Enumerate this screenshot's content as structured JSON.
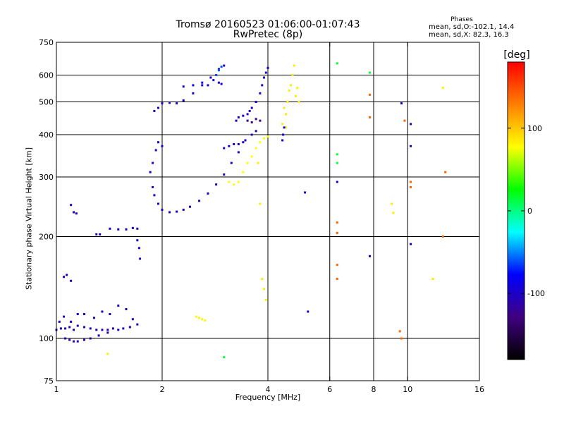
{
  "chart_data": {
    "type": "scatter",
    "title": "Tromsø 20160523 01:06:00-01:07:43",
    "subtitle": "RwPretec (8p)",
    "info": {
      "heading": "Phases",
      "line_o": "mean, sd,O:-102.1, 14.4",
      "line_x": "mean, sd,X:  82.3, 16.3"
    },
    "xlabel": "Frequency [MHz]",
    "ylabel": "Stationary phase Virtual Height [km]",
    "x_scale": "log",
    "y_scale": "log",
    "xlim": [
      1,
      16
    ],
    "ylim": [
      75,
      750
    ],
    "x_ticks": [
      1,
      2,
      4,
      6,
      8,
      10,
      16
    ],
    "x_tick_labels": [
      "1",
      "2",
      "4",
      "6",
      "8",
      "10",
      "16"
    ],
    "x_grid": [
      2,
      4,
      6,
      8,
      10
    ],
    "y_ticks": [
      75,
      100,
      200,
      300,
      400,
      500,
      600,
      750
    ],
    "y_tick_labels": [
      "75",
      "100",
      "200",
      "300",
      "400",
      "500",
      "600",
      "750"
    ],
    "y_grid": [
      100,
      200,
      300,
      400,
      500,
      600
    ],
    "colorbar": {
      "label": "[deg]",
      "range": [
        -180,
        180
      ],
      "tick_values": [
        100,
        0,
        -100
      ],
      "tick_labels": [
        "100",
        "0",
        "-100"
      ],
      "colors": [
        "#000000",
        "#400080",
        "#0000ff",
        "#00ffff",
        "#00ff00",
        "#ffff00",
        "#ff8000",
        "#ff0000"
      ]
    },
    "series": [
      {
        "phase": -105,
        "points": [
          [
            1.0,
            106
          ],
          [
            1.03,
            107
          ],
          [
            1.06,
            107
          ],
          [
            1.09,
            108
          ],
          [
            1.12,
            106
          ],
          [
            1.15,
            109
          ],
          [
            1.2,
            108
          ],
          [
            1.25,
            107
          ],
          [
            1.3,
            106
          ],
          [
            1.35,
            106
          ],
          [
            1.4,
            106
          ],
          [
            1.45,
            107
          ],
          [
            1.5,
            106
          ],
          [
            1.55,
            107
          ],
          [
            1.62,
            108
          ],
          [
            1.7,
            110
          ]
        ]
      },
      {
        "phase": -110,
        "points": [
          [
            1.06,
            100
          ],
          [
            1.09,
            99
          ],
          [
            1.12,
            98
          ],
          [
            1.15,
            98
          ],
          [
            1.2,
            99
          ],
          [
            1.25,
            100
          ],
          [
            1.32,
            102
          ],
          [
            1.4,
            104
          ]
        ]
      },
      {
        "phase": -100,
        "points": [
          [
            1.02,
            112
          ],
          [
            1.05,
            116
          ],
          [
            1.1,
            112
          ],
          [
            1.15,
            118
          ],
          [
            1.2,
            118
          ],
          [
            1.28,
            115
          ],
          [
            1.35,
            120
          ],
          [
            1.42,
            118
          ],
          [
            1.5,
            125
          ],
          [
            1.58,
            122
          ],
          [
            1.65,
            114
          ]
        ]
      },
      {
        "phase": -105,
        "points": [
          [
            1.05,
            152
          ],
          [
            1.07,
            154
          ],
          [
            1.1,
            148
          ]
        ]
      },
      {
        "phase": -100,
        "points": [
          [
            1.1,
            248
          ],
          [
            1.12,
            236
          ],
          [
            1.14,
            234
          ]
        ]
      },
      {
        "phase": -100,
        "points": [
          [
            1.3,
            203
          ],
          [
            1.33,
            203
          ],
          [
            1.42,
            211
          ],
          [
            1.5,
            210
          ],
          [
            1.58,
            210
          ],
          [
            1.65,
            212
          ],
          [
            1.7,
            211
          ]
        ]
      },
      {
        "phase": -95,
        "points": [
          [
            1.7,
            195
          ],
          [
            1.72,
            185
          ],
          [
            1.73,
            172
          ]
        ]
      },
      {
        "phase": -100,
        "points": [
          [
            1.88,
            280
          ],
          [
            1.9,
            265
          ],
          [
            1.95,
            250
          ],
          [
            2.0,
            240
          ],
          [
            2.1,
            236
          ],
          [
            2.2,
            237
          ],
          [
            2.3,
            240
          ],
          [
            2.4,
            245
          ],
          [
            2.55,
            255
          ],
          [
            2.7,
            268
          ],
          [
            2.85,
            285
          ],
          [
            3.0,
            305
          ],
          [
            3.15,
            330
          ],
          [
            3.3,
            355
          ],
          [
            3.45,
            385
          ],
          [
            3.6,
            400
          ],
          [
            3.7,
            410
          ]
        ]
      },
      {
        "phase": -95,
        "points": [
          [
            1.85,
            310
          ],
          [
            1.88,
            330
          ],
          [
            1.92,
            360
          ],
          [
            1.95,
            380
          ],
          [
            2.0,
            370
          ]
        ]
      },
      {
        "phase": -100,
        "points": [
          [
            1.9,
            470
          ],
          [
            1.95,
            480
          ],
          [
            2.0,
            495
          ],
          [
            2.1,
            497
          ],
          [
            2.2,
            495
          ],
          [
            2.3,
            505
          ],
          [
            2.45,
            530
          ],
          [
            2.6,
            560
          ],
          [
            2.75,
            590
          ],
          [
            2.9,
            625
          ],
          [
            3.0,
            640
          ]
        ]
      },
      {
        "phase": -90,
        "points": [
          [
            2.3,
            555
          ],
          [
            2.45,
            560
          ],
          [
            2.6,
            570
          ],
          [
            2.7,
            560
          ],
          [
            2.8,
            580
          ],
          [
            2.85,
            600
          ],
          [
            2.9,
            570
          ],
          [
            2.95,
            565
          ]
        ]
      },
      {
        "phase": -60,
        "points": [
          [
            2.85,
            600
          ],
          [
            2.9,
            620
          ],
          [
            2.95,
            635
          ]
        ]
      },
      {
        "phase": -100,
        "points": [
          [
            3.5,
            460
          ],
          [
            3.55,
            470
          ],
          [
            3.6,
            480
          ],
          [
            3.7,
            500
          ],
          [
            3.8,
            530
          ],
          [
            3.85,
            560
          ],
          [
            3.9,
            590
          ],
          [
            3.95,
            610
          ],
          [
            4.0,
            630
          ]
        ]
      },
      {
        "phase": -100,
        "points": [
          [
            3.0,
            365
          ],
          [
            3.1,
            370
          ],
          [
            3.2,
            375
          ],
          [
            3.3,
            375
          ],
          [
            3.4,
            380
          ]
        ]
      },
      {
        "phase": -125,
        "points": [
          [
            3.5,
            440
          ],
          [
            3.6,
            435
          ],
          [
            3.7,
            445
          ],
          [
            3.8,
            440
          ]
        ]
      },
      {
        "phase": -100,
        "points": [
          [
            3.3,
            450
          ],
          [
            3.4,
            455
          ],
          [
            3.25,
            440
          ]
        ]
      },
      {
        "phase": 78,
        "points": [
          [
            3.1,
            290
          ],
          [
            3.2,
            285
          ],
          [
            3.3,
            290
          ],
          [
            3.4,
            310
          ],
          [
            3.5,
            330
          ],
          [
            3.6,
            345
          ],
          [
            3.7,
            365
          ],
          [
            3.8,
            380
          ],
          [
            3.9,
            390
          ],
          [
            4.0,
            395
          ]
        ]
      },
      {
        "phase": 85,
        "points": [
          [
            4.4,
            430
          ],
          [
            4.5,
            460
          ],
          [
            4.55,
            500
          ],
          [
            4.6,
            540
          ],
          [
            4.65,
            560
          ],
          [
            4.7,
            600
          ],
          [
            4.75,
            640
          ],
          [
            4.8,
            520
          ],
          [
            4.85,
            550
          ],
          [
            4.5,
            420
          ],
          [
            4.45,
            480
          ],
          [
            4.9,
            500
          ]
        ]
      },
      {
        "phase": -95,
        "points": [
          [
            4.4,
            385
          ],
          [
            4.42,
            400
          ],
          [
            4.45,
            420
          ]
        ]
      },
      {
        "phase": 80,
        "points": [
          [
            2.5,
            116
          ],
          [
            2.55,
            115
          ],
          [
            2.6,
            114
          ],
          [
            2.65,
            113
          ]
        ]
      },
      {
        "phase": 85,
        "points": [
          [
            3.75,
            330
          ],
          [
            3.8,
            250
          ],
          [
            3.85,
            150
          ],
          [
            3.9,
            140
          ],
          [
            3.95,
            130
          ]
        ]
      },
      {
        "phase": 140,
        "points": [
          [
            6.3,
            220
          ],
          [
            6.3,
            205
          ],
          [
            6.3,
            165
          ],
          [
            6.3,
            150
          ],
          [
            7.8,
            525
          ],
          [
            7.8,
            450
          ],
          [
            7.8,
            175
          ],
          [
            9.5,
            105
          ],
          [
            9.6,
            100
          ],
          [
            9.8,
            440
          ],
          [
            10.2,
            290
          ],
          [
            10.2,
            280
          ],
          [
            12.8,
            310
          ],
          [
            12.6,
            200
          ]
        ]
      },
      {
        "phase": -100,
        "points": [
          [
            6.3,
            290
          ],
          [
            7.8,
            175
          ],
          [
            9.6,
            495
          ],
          [
            10.2,
            430
          ],
          [
            10.2,
            370
          ],
          [
            10.2,
            190
          ],
          [
            5.2,
            120
          ],
          [
            5.1,
            270
          ]
        ]
      },
      {
        "phase": 15,
        "points": [
          [
            6.3,
            330
          ],
          [
            6.3,
            350
          ],
          [
            6.3,
            650
          ],
          [
            7.8,
            610
          ],
          [
            3.0,
            88
          ]
        ]
      },
      {
        "phase": 85,
        "points": [
          [
            9.0,
            250
          ],
          [
            9.1,
            235
          ],
          [
            12.6,
            550
          ],
          [
            11.8,
            150
          ],
          [
            1.4,
            90
          ]
        ]
      }
    ]
  }
}
